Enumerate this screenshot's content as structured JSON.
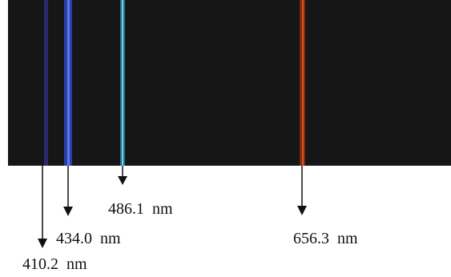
{
  "lines": [
    {
      "label": "410.2  nm"
    },
    {
      "label": "434.0  nm"
    },
    {
      "label": "486.1  nm"
    },
    {
      "label": "656.3  nm"
    }
  ]
}
